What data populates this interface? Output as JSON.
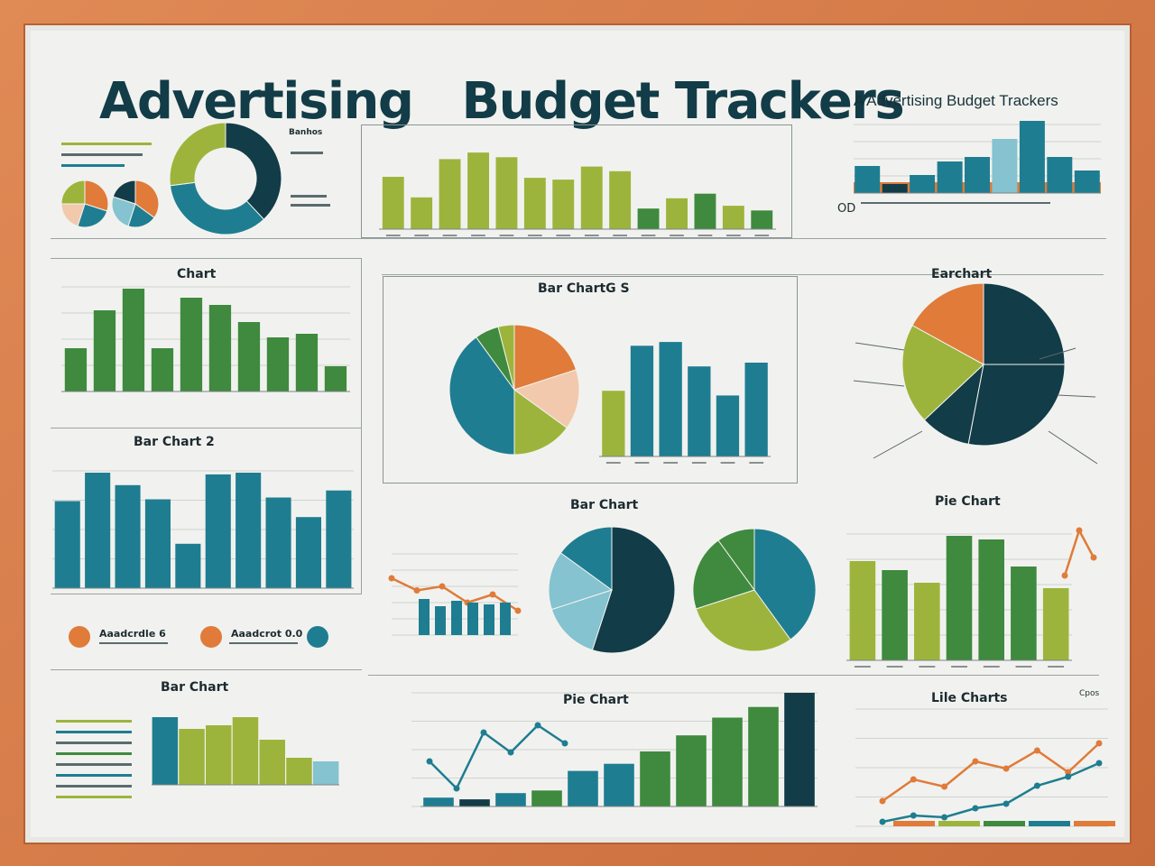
{
  "header": {
    "title": "Advertising   Budget Trackers",
    "subtitle": "A Advertising Budget Trackers"
  },
  "labels": {
    "chart1": "Chart",
    "barchart_top": "Bar ChartG S",
    "earchart": "Earchart",
    "barchart2": "Bar Chart 2",
    "barchart_mid": "Bar Chart",
    "piechart_right": "Pie Chart",
    "barchart_low": "Bar Chart",
    "piechart_low": "Pie Chart",
    "linecharts": "Lile Charts",
    "donut_legend": "Banhos",
    "small_od": "OD",
    "corner_code": "Cpos",
    "badge1": "Aaadcrdle 6",
    "badge2": "Aaadcrot 0.0"
  },
  "colors": {
    "navy": "#123c47",
    "teal": "#1f7d91",
    "olive": "#9db43c",
    "green": "#3f8a3e",
    "orange": "#e07b39",
    "peach": "#f2c9ac",
    "lightblue": "#84c3cf",
    "frame": "#d87d4c"
  },
  "chart_data": [
    {
      "id": "top-pies",
      "type": "pie",
      "series": [
        {
          "values": [
            30,
            25,
            20,
            25
          ]
        },
        {
          "values": [
            35,
            20,
            25,
            20
          ]
        },
        {
          "values": [
            38,
            35,
            27
          ]
        }
      ]
    },
    {
      "id": "top-bars",
      "type": "bar",
      "values": [
        56,
        34,
        75,
        82,
        77,
        55,
        53,
        67,
        62,
        22,
        33,
        38,
        25,
        20
      ]
    },
    {
      "id": "top-right-bars",
      "type": "bar",
      "values": [
        30,
        10,
        20,
        35,
        40,
        60,
        80,
        40,
        25
      ]
    },
    {
      "id": "chart-left-1",
      "type": "bar",
      "title": "Chart",
      "values": [
        48,
        90,
        114,
        48,
        104,
        96,
        77,
        60,
        64,
        28
      ]
    },
    {
      "id": "bar-chart-top-mid",
      "type": "bar",
      "title": "Bar ChartG S",
      "values": [
        70,
        118,
        122,
        96,
        65,
        100
      ]
    },
    {
      "id": "pie-mid-top",
      "type": "pie",
      "values": [
        20,
        15,
        15,
        40,
        6,
        4
      ]
    },
    {
      "id": "earchart-pie",
      "type": "pie",
      "title": "Earchart",
      "values": [
        25,
        28,
        10,
        20,
        17
      ]
    },
    {
      "id": "bar-chart-2",
      "type": "bar",
      "title": "Bar Chart 2",
      "values": [
        98,
        130,
        116,
        100,
        50,
        128,
        130,
        102,
        80,
        110
      ]
    },
    {
      "id": "pie-mid-pair",
      "type": "pie",
      "title": "Bar Chart",
      "series": [
        {
          "values": [
            55,
            15,
            15,
            15
          ]
        },
        {
          "values": [
            40,
            30,
            20,
            10
          ]
        }
      ]
    },
    {
      "id": "pie-chart-right-bars",
      "type": "bar",
      "title": "Pie Chart",
      "values": [
        110,
        100,
        86,
        138,
        134,
        104,
        80
      ]
    },
    {
      "id": "bar-chart-low",
      "type": "bar",
      "title": "Bar Chart",
      "values": [
        75,
        62,
        66,
        75,
        50,
        30,
        26
      ]
    },
    {
      "id": "pie-chart-low",
      "type": "bar",
      "title": "Pie Chart",
      "values": [
        10,
        8,
        15,
        18,
        40,
        48,
        62,
        80,
        100,
        112,
        128
      ]
    },
    {
      "id": "lile-charts",
      "type": "line",
      "title": "Lile Charts",
      "series": [
        {
          "values": [
            10,
            40,
            30,
            65,
            55,
            80,
            50,
            90
          ]
        },
        {
          "values": [
            5,
            12,
            10,
            20,
            25,
            45,
            55,
            70
          ]
        }
      ]
    }
  ]
}
